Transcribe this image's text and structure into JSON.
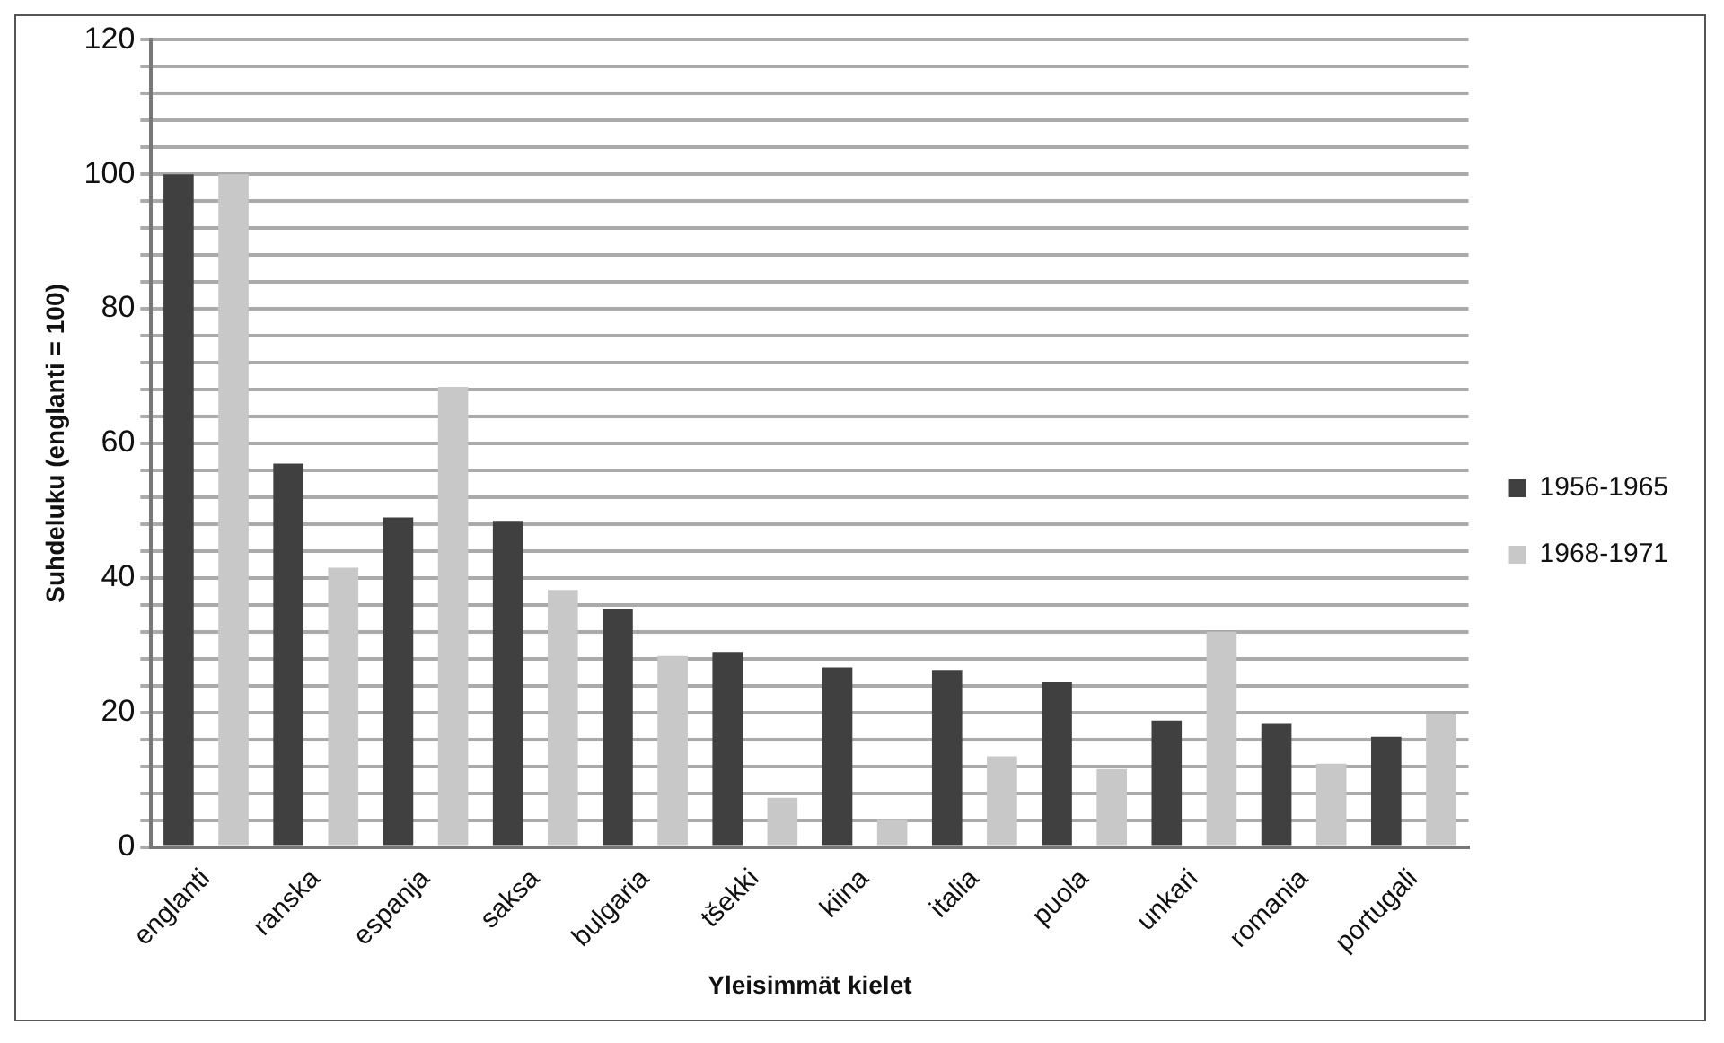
{
  "chart_data": {
    "type": "bar",
    "xlabel": "Yleisimmät kielet",
    "ylabel": "Suhdeluku (englanti = 100)",
    "categories": [
      "englanti",
      "ranska",
      "espanja",
      "saksa",
      "bulgaria",
      "tšekki",
      "kiina",
      "italia",
      "puola",
      "unkari",
      "romania",
      "portugali"
    ],
    "series": [
      {
        "name": "1956-1965",
        "color": "#404040",
        "values": [
          100,
          57,
          49,
          48.5,
          35.3,
          29,
          26.7,
          26.2,
          24.5,
          18.8,
          18.3,
          16.4
        ]
      },
      {
        "name": "1968-1971",
        "color": "#c8c8c8",
        "values": [
          100,
          41.5,
          68.4,
          38.2,
          28.4,
          7.3,
          4,
          13.5,
          11.6,
          32,
          12.4,
          19.8
        ]
      }
    ],
    "ylim": [
      0,
      120
    ],
    "yticks": [
      0,
      {
        "value": 4,
        "label": null
      },
      {
        "value": 8,
        "label": null
      },
      {
        "value": 12,
        "label": null
      },
      {
        "value": 16,
        "label": null
      },
      20,
      {
        "value": 24,
        "label": null
      },
      {
        "value": 28,
        "label": null
      },
      {
        "value": 32,
        "label": null
      },
      {
        "value": 36,
        "label": null
      },
      40,
      {
        "value": 44,
        "label": null
      },
      {
        "value": 48,
        "label": null
      },
      {
        "value": 52,
        "label": null
      },
      {
        "value": 56,
        "label": null
      },
      60,
      {
        "value": 64,
        "label": null
      },
      {
        "value": 68,
        "label": null
      },
      {
        "value": 72,
        "label": null
      },
      {
        "value": 76,
        "label": null
      },
      80,
      {
        "value": 84,
        "label": null
      },
      {
        "value": 88,
        "label": null
      },
      {
        "value": 92,
        "label": null
      },
      {
        "value": 96,
        "label": null
      },
      100,
      {
        "value": 104,
        "label": null
      },
      {
        "value": 108,
        "label": null
      },
      {
        "value": 112,
        "label": null
      },
      {
        "value": 116,
        "label": null
      },
      120
    ],
    "grid": "y",
    "legend": "right"
  }
}
